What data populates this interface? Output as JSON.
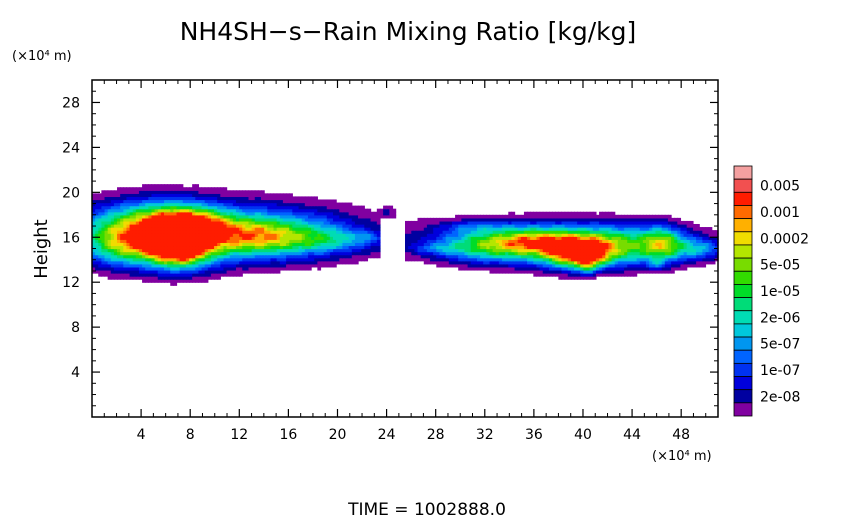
{
  "chart_data": {
    "type": "heatmap",
    "title": "NH4SH−s−Rain Mixing Ratio [kg/kg]",
    "ylabel": "Height",
    "y_unit": "(×10⁴ m)",
    "x_unit": "(×10⁴ m)",
    "xlim": [
      0,
      51
    ],
    "ylim": [
      0,
      30
    ],
    "x_ticks": [
      4,
      8,
      12,
      16,
      20,
      24,
      28,
      32,
      36,
      40,
      44,
      48
    ],
    "y_ticks": [
      4,
      8,
      12,
      16,
      20,
      24,
      28
    ],
    "x_tick_labels": [
      "4",
      "8",
      "12",
      "16",
      "20",
      "24",
      "28",
      "32",
      "36",
      "40",
      "44",
      "48"
    ],
    "y_tick_labels": [
      "4",
      "8",
      "12",
      "16",
      "20",
      "24",
      "28"
    ],
    "grid": false,
    "colorbar": {
      "levels": [
        {
          "label": "",
          "color": "#f4a0a0"
        },
        {
          "label": "0.005",
          "color": "#f25050"
        },
        {
          "label": "",
          "color": "#ff1c00"
        },
        {
          "label": "0.001",
          "color": "#ff6a00"
        },
        {
          "label": "",
          "color": "#ffb000"
        },
        {
          "label": "0.0002",
          "color": "#f0dc00"
        },
        {
          "label": "",
          "color": "#b4e600"
        },
        {
          "label": "5e-05",
          "color": "#78dc00"
        },
        {
          "label": "",
          "color": "#32dc00"
        },
        {
          "label": "1e-05",
          "color": "#00dc28"
        },
        {
          "label": "",
          "color": "#00dc78"
        },
        {
          "label": "2e-06",
          "color": "#00dcb4"
        },
        {
          "label": "",
          "color": "#00c8dc"
        },
        {
          "label": "5e-07",
          "color": "#0096f0"
        },
        {
          "label": "",
          "color": "#0064ff"
        },
        {
          "label": "1e-07",
          "color": "#0032f0"
        },
        {
          "label": "",
          "color": "#0000dc"
        },
        {
          "label": "2e-08",
          "color": "#0000a0"
        },
        {
          "label": "",
          "color": "#8000a0"
        }
      ]
    },
    "regions": [
      {
        "name": "west-cloud",
        "x_range": [
          0.3,
          23
        ],
        "y_range": [
          13.5,
          19.5
        ],
        "peak_level_index": 2,
        "peak_x": 7,
        "peak_y": 15.5
      },
      {
        "name": "east-cloud",
        "x_range": [
          26,
          51
        ],
        "y_range": [
          13,
          18
        ],
        "peak_level_index": 3,
        "peak_x": 40,
        "peak_y": 14.6
      }
    ]
  },
  "footer": {
    "time_label": "TIME  =  1002888.0"
  }
}
